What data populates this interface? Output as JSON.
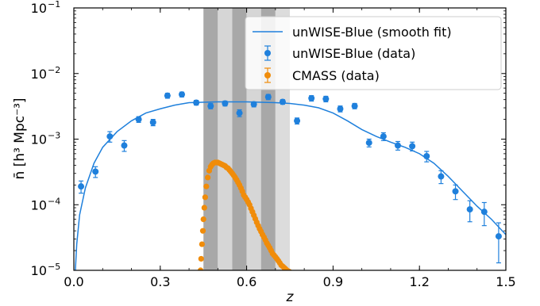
{
  "chart_data": {
    "type": "scatter",
    "xlabel": "z",
    "ylabel": "n̄ [h³ Mpc⁻³]",
    "xlim": [
      0.0,
      1.5
    ],
    "ylim": [
      1e-05,
      0.1
    ],
    "yscale": "log",
    "x_ticks": [
      "0.0",
      "0.3",
      "0.6",
      "0.9",
      "1.2",
      "1.5"
    ],
    "y_ticks": [
      {
        "base": "10",
        "exp": "−1",
        "value": 0.1
      },
      {
        "base": "10",
        "exp": "−2",
        "value": 0.01
      },
      {
        "base": "10",
        "exp": "−3",
        "value": 0.001
      },
      {
        "base": "10",
        "exp": "−4",
        "value": 0.0001
      },
      {
        "base": "10",
        "exp": "−5",
        "value": 1e-05
      }
    ],
    "grid": false,
    "legend_position": "top-right",
    "shaded_bands": [
      {
        "x0": 0.45,
        "x1": 0.5,
        "shade": "#a8a8a8"
      },
      {
        "x0": 0.5,
        "x1": 0.55,
        "shade": "#d6d6d6"
      },
      {
        "x0": 0.55,
        "x1": 0.6,
        "shade": "#a8a8a8"
      },
      {
        "x0": 0.6,
        "x1": 0.65,
        "shade": "#d6d6d6"
      },
      {
        "x0": 0.65,
        "x1": 0.7,
        "shade": "#a8a8a8"
      },
      {
        "x0": 0.7,
        "x1": 0.75,
        "shade": "#dcdcdc"
      }
    ],
    "series": [
      {
        "name": "unWISE-Blue (smooth fit)",
        "kind": "line",
        "color": "#1f80dc",
        "x": [
          0.005,
          0.01,
          0.02,
          0.04,
          0.07,
          0.1,
          0.15,
          0.2,
          0.25,
          0.3,
          0.35,
          0.4,
          0.5,
          0.6,
          0.7,
          0.75,
          0.8,
          0.85,
          0.9,
          0.95,
          1.0,
          1.05,
          1.1,
          1.15,
          1.2,
          1.25,
          1.3,
          1.35,
          1.4,
          1.45,
          1.5
        ],
        "y": [
          9.5e-06,
          2.5e-05,
          7e-05,
          0.00018,
          0.00043,
          0.00075,
          0.0013,
          0.0019,
          0.0025,
          0.0029,
          0.0033,
          0.0036,
          0.0037,
          0.0037,
          0.0036,
          0.0035,
          0.0033,
          0.003,
          0.0025,
          0.0019,
          0.0014,
          0.0011,
          0.0009,
          0.00075,
          0.0006,
          0.00043,
          0.00027,
          0.00016,
          9.5e-05,
          6e-05,
          3.5e-05
        ]
      },
      {
        "name": "unWISE-Blue (data)",
        "kind": "points",
        "color": "#1f80dc",
        "x": [
          0.025,
          0.075,
          0.125,
          0.175,
          0.225,
          0.275,
          0.325,
          0.375,
          0.425,
          0.475,
          0.525,
          0.575,
          0.625,
          0.675,
          0.725,
          0.775,
          0.825,
          0.875,
          0.925,
          0.975,
          1.025,
          1.075,
          1.125,
          1.175,
          1.225,
          1.275,
          1.325,
          1.375,
          1.425,
          1.475
        ],
        "y": [
          0.00019,
          0.00032,
          0.0011,
          0.0008,
          0.002,
          0.0018,
          0.0046,
          0.0048,
          0.0036,
          0.0032,
          0.0035,
          0.0025,
          0.0034,
          0.0044,
          0.0037,
          0.0019,
          0.0042,
          0.0041,
          0.0029,
          0.0032,
          0.00088,
          0.0011,
          0.0008,
          0.00078,
          0.00055,
          0.00027,
          0.00016,
          8.5e-05,
          7.8e-05,
          3.3e-05
        ],
        "err": [
          4e-05,
          6e-05,
          0.0002,
          0.00015,
          0.0002,
          0.0002,
          0.0004,
          0.0004,
          0.0003,
          0.0003,
          0.0003,
          0.0003,
          0.0003,
          0.0004,
          0.0003,
          0.0002,
          0.0004,
          0.0004,
          0.0003,
          0.0003,
          0.00012,
          0.00015,
          0.00012,
          0.00012,
          0.0001,
          6e-05,
          4e-05,
          3e-05,
          3e-05,
          2e-05
        ]
      },
      {
        "name": "CMASS (data)",
        "kind": "points",
        "color": "#f08c0a",
        "x": [
          0.44,
          0.442,
          0.445,
          0.448,
          0.45,
          0.453,
          0.456,
          0.46,
          0.465,
          0.47,
          0.475,
          0.48,
          0.485,
          0.49,
          0.495,
          0.5,
          0.505,
          0.51,
          0.515,
          0.52,
          0.525,
          0.53,
          0.535,
          0.54,
          0.545,
          0.55,
          0.555,
          0.56,
          0.565,
          0.57,
          0.575,
          0.58,
          0.585,
          0.59,
          0.595,
          0.6,
          0.605,
          0.61,
          0.615,
          0.62,
          0.625,
          0.63,
          0.635,
          0.64,
          0.645,
          0.65,
          0.655,
          0.66,
          0.665,
          0.67,
          0.675,
          0.68,
          0.685,
          0.69,
          0.695,
          0.7,
          0.705,
          0.71,
          0.715,
          0.72,
          0.725,
          0.73,
          0.735,
          0.74,
          0.743,
          0.746,
          0.748,
          0.75
        ],
        "y": [
          1e-05,
          1.5e-05,
          2.5e-05,
          4e-05,
          6e-05,
          9e-05,
          0.00013,
          0.00019,
          0.00026,
          0.00033,
          0.00038,
          0.00041,
          0.00043,
          0.00044,
          0.00044,
          0.00044,
          0.00043,
          0.00042,
          0.00041,
          0.0004,
          0.00039,
          0.00037,
          0.00036,
          0.00034,
          0.00032,
          0.0003,
          0.00028,
          0.00026,
          0.00024,
          0.00022,
          0.0002,
          0.00018,
          0.00016,
          0.00014,
          0.00013,
          0.00012,
          0.00011,
          0.0001,
          8.8e-05,
          7.8e-05,
          6.9e-05,
          6.1e-05,
          5.4e-05,
          4.8e-05,
          4.3e-05,
          3.9e-05,
          3.5e-05,
          3.2e-05,
          2.9e-05,
          2.6e-05,
          2.4e-05,
          2.2e-05,
          2e-05,
          1.8e-05,
          1.7e-05,
          1.6e-05,
          1.5e-05,
          1.4e-05,
          1.3e-05,
          1.2e-05,
          1.15e-05,
          1.1e-05,
          1.05e-05,
          1e-05,
          9.8e-06,
          9.6e-06,
          9.5e-06,
          9.4e-06
        ]
      }
    ]
  }
}
